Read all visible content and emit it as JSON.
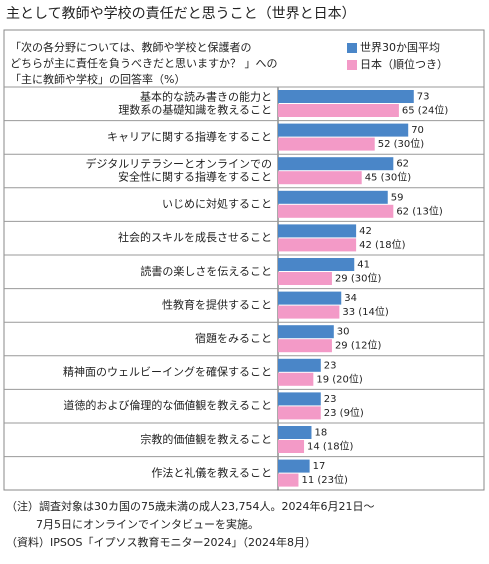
{
  "chart_data": {
    "type": "bar",
    "orientation": "horizontal",
    "title": "主として教師や学校の責任だと思うこと（世界と日本）",
    "subtitle": [
      "「次の各分野については、教師や学校と保護者の",
      "どちらが主に責任を負うべきだと思いますか？ 」への",
      "「主に教師や学校」の回答率（%）"
    ],
    "categories": [
      [
        "基本的な読み書きの能力と",
        "理数系の基礎知識を教えること"
      ],
      [
        "キャリアに関する指導をすること"
      ],
      [
        "デジタルリテラシーとオンラインでの",
        "安全性に関する指導をすること"
      ],
      [
        "いじめに対処すること"
      ],
      [
        "社会的スキルを成長させること"
      ],
      [
        "読書の楽しさを伝えること"
      ],
      [
        "性教育を提供すること"
      ],
      [
        "宿題をみること"
      ],
      [
        "精神面のウェルビーイングを確保すること"
      ],
      [
        "道徳的および倫理的な価値観を教えること"
      ],
      [
        "宗教的価値観を教えること"
      ],
      [
        "作法と礼儀を教えること"
      ]
    ],
    "series": [
      {
        "name": "世界30か国平均",
        "color": "#4a86c8",
        "values": [
          73,
          70,
          62,
          59,
          42,
          41,
          34,
          30,
          23,
          23,
          18,
          17
        ]
      },
      {
        "name": "日本（順位つき）",
        "color": "#f39ac7",
        "values": [
          65,
          52,
          45,
          62,
          42,
          29,
          33,
          29,
          19,
          23,
          14,
          11
        ],
        "value_labels": [
          "65 (24位)",
          "52 (30位)",
          "45 (30位)",
          "62 (13位)",
          "42 (18位)",
          "29 (30位)",
          "33 (14位)",
          "29 (12位)",
          "19 (20位)",
          "23 (9位)",
          "14 (18位)",
          "11 (23位)"
        ]
      }
    ],
    "notes": [
      "（注）調査対象は30カ国の75歳未満の成人23,754人。2024年6月21日〜",
      "7月5日にオンラインでインタビューを実施。",
      "（資料）IPSOS「イプソス教育モニター2024」（2024年8月）"
    ]
  }
}
